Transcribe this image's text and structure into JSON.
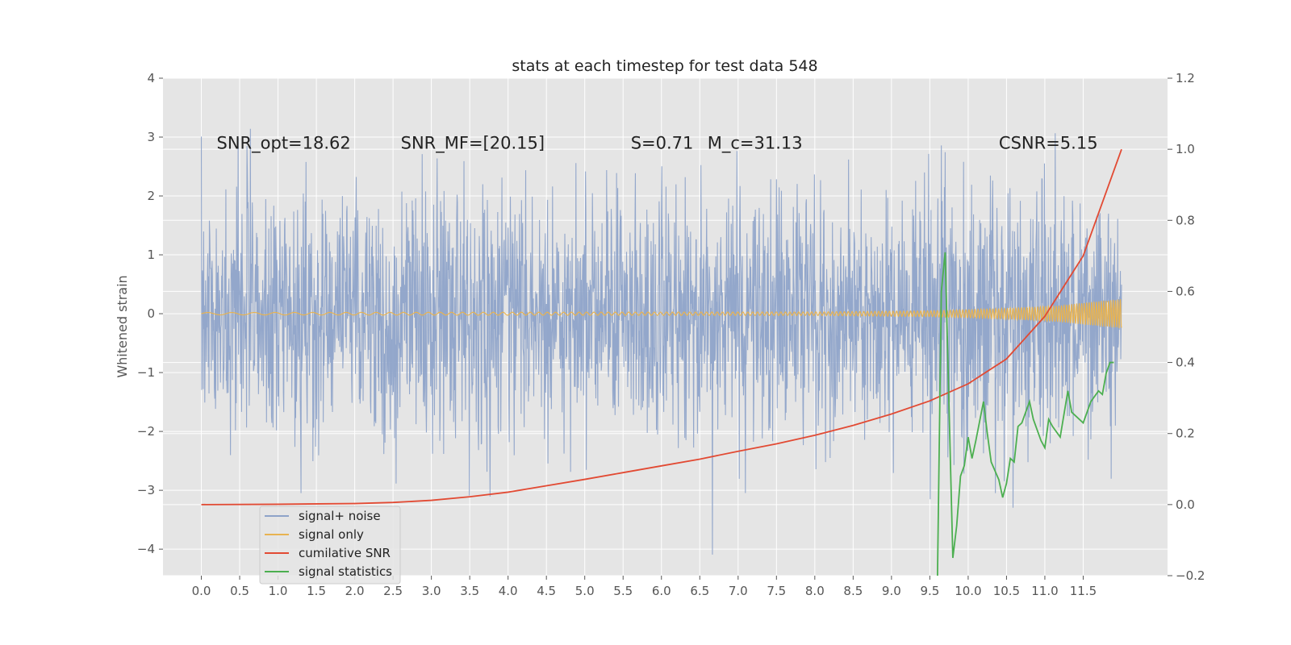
{
  "chart_data": {
    "type": "line",
    "title": "stats at each timestep for test data 548",
    "ylabel": "Whitened strain",
    "xlabel": "",
    "xlim": [
      -0.5,
      12.6
    ],
    "ylim_left": [
      -4.45,
      4.0
    ],
    "ylim_right": [
      -0.2,
      1.2
    ],
    "x_ticks": [
      0.0,
      0.5,
      1.0,
      1.5,
      2.0,
      2.5,
      3.0,
      3.5,
      4.0,
      4.5,
      5.0,
      5.5,
      6.0,
      6.5,
      7.0,
      7.5,
      8.0,
      8.5,
      9.0,
      9.5,
      10.0,
      10.5,
      11.0,
      11.5
    ],
    "x_tick_labels": [
      "0.0",
      "0.5",
      "1.0",
      "1.5",
      "2.0",
      "2.5",
      "3.0",
      "3.5",
      "4.0",
      "4.5",
      "5.0",
      "5.5",
      "6.0",
      "6.5",
      "7.0",
      "7.5",
      "8.0",
      "8.5",
      "9.0",
      "9.5",
      "10.0",
      "10.5",
      "11.0",
      "11.5"
    ],
    "y_ticks_left": [
      -4,
      -3,
      -2,
      -1,
      0,
      1,
      2,
      3,
      4
    ],
    "y_tick_labels_left": [
      "−4",
      "−3",
      "−2",
      "−1",
      "0",
      "1",
      "2",
      "3",
      "4"
    ],
    "y_ticks_right": [
      -0.2,
      0.0,
      0.2,
      0.4,
      0.6,
      0.8,
      1.0,
      1.2
    ],
    "y_tick_labels_right": [
      "−0.2",
      "0.0",
      "0.2",
      "0.4",
      "0.6",
      "0.8",
      "1.0",
      "1.2"
    ],
    "grid": true,
    "legend_position": "lower-left",
    "annotations": [
      {
        "text": "SNR_opt=18.62",
        "x": 0.2,
        "y": 2.9
      },
      {
        "text": "SNR_MF=[20.15]",
        "x": 2.6,
        "y": 2.9
      },
      {
        "text": "S=0.71",
        "x": 5.6,
        "y": 2.9
      },
      {
        "text": "M_c=31.13",
        "x": 6.6,
        "y": 2.9
      },
      {
        "text": "CSNR=5.15",
        "x": 10.4,
        "y": 2.9
      }
    ],
    "series": [
      {
        "name": "signal+ noise",
        "axis": "left",
        "color": "#8ea3c9",
        "x_range": [
          0.0,
          12.0
        ],
        "envelope_typical": [
          -2.0,
          2.0
        ],
        "y_extremes": [
          -4.1,
          3.65
        ],
        "note_peak_at": 6.0
      },
      {
        "name": "signal only",
        "axis": "left",
        "color": "#e8b351",
        "x_range": [
          0.0,
          12.0
        ],
        "amplitude_points": [
          [
            0.0,
            0.02
          ],
          [
            8.0,
            0.03
          ],
          [
            9.5,
            0.05
          ],
          [
            10.5,
            0.09
          ],
          [
            11.2,
            0.14
          ],
          [
            11.6,
            0.2
          ],
          [
            12.0,
            0.25
          ]
        ]
      },
      {
        "name": "cumilative SNR",
        "axis": "right",
        "color": "#e24a33",
        "x": [
          0.0,
          1.0,
          2.0,
          2.5,
          3.0,
          3.5,
          4.0,
          4.5,
          5.0,
          5.5,
          6.0,
          6.5,
          7.0,
          7.5,
          8.0,
          8.5,
          9.0,
          9.5,
          10.0,
          10.5,
          11.0,
          11.5,
          12.0
        ],
        "y": [
          0.0,
          0.001,
          0.003,
          0.006,
          0.012,
          0.022,
          0.035,
          0.053,
          0.071,
          0.09,
          0.109,
          0.128,
          0.15,
          0.171,
          0.195,
          0.223,
          0.255,
          0.292,
          0.34,
          0.41,
          0.53,
          0.7,
          1.0
        ]
      },
      {
        "name": "signal statistics",
        "axis": "right",
        "color": "#4caf50",
        "x": [
          9.6,
          9.65,
          9.7,
          9.8,
          9.85,
          9.9,
          9.95,
          10.0,
          10.05,
          10.1,
          10.2,
          10.25,
          10.3,
          10.4,
          10.45,
          10.5,
          10.55,
          10.6,
          10.65,
          10.7,
          10.8,
          10.85,
          10.9,
          10.95,
          11.0,
          11.05,
          11.1,
          11.2,
          11.3,
          11.35,
          11.4,
          11.5,
          11.55,
          11.6,
          11.7,
          11.75,
          11.8,
          11.85,
          11.9
        ],
        "y": [
          -0.2,
          0.6,
          0.71,
          -0.15,
          -0.06,
          0.08,
          0.11,
          0.19,
          0.13,
          0.18,
          0.29,
          0.2,
          0.12,
          0.07,
          0.02,
          0.06,
          0.13,
          0.12,
          0.22,
          0.23,
          0.29,
          0.24,
          0.21,
          0.18,
          0.16,
          0.24,
          0.22,
          0.19,
          0.32,
          0.26,
          0.25,
          0.23,
          0.26,
          0.29,
          0.32,
          0.31,
          0.37,
          0.4,
          0.4
        ]
      }
    ]
  }
}
